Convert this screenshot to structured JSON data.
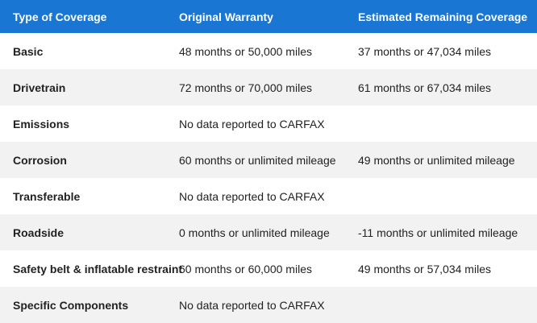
{
  "table": {
    "headers": [
      "Type of Coverage",
      "Original Warranty",
      "Estimated Remaining Coverage"
    ],
    "rows": [
      [
        "Basic",
        "48 months or 50,000 miles",
        "37 months or 47,034 miles"
      ],
      [
        "Drivetrain",
        "72 months or 70,000 miles",
        "61 months or 67,034 miles"
      ],
      [
        "Emissions",
        "No data reported to CARFAX",
        ""
      ],
      [
        "Corrosion",
        "60 months or unlimited mileage",
        "49 months or unlimited mileage"
      ],
      [
        "Transferable",
        "No data reported to CARFAX",
        ""
      ],
      [
        "Roadside",
        "0 months or unlimited mileage",
        "-11 months or unlimited mileage"
      ],
      [
        "Safety belt & inflatable restraint",
        "60 months or 60,000 miles",
        "49 months or 57,034 miles"
      ],
      [
        "Specific Components",
        "No data reported to CARFAX",
        ""
      ]
    ]
  },
  "colors": {
    "header_bg": "#1976d2",
    "header_text": "#ffffff",
    "alt_row_bg": "#f2f2f2"
  }
}
